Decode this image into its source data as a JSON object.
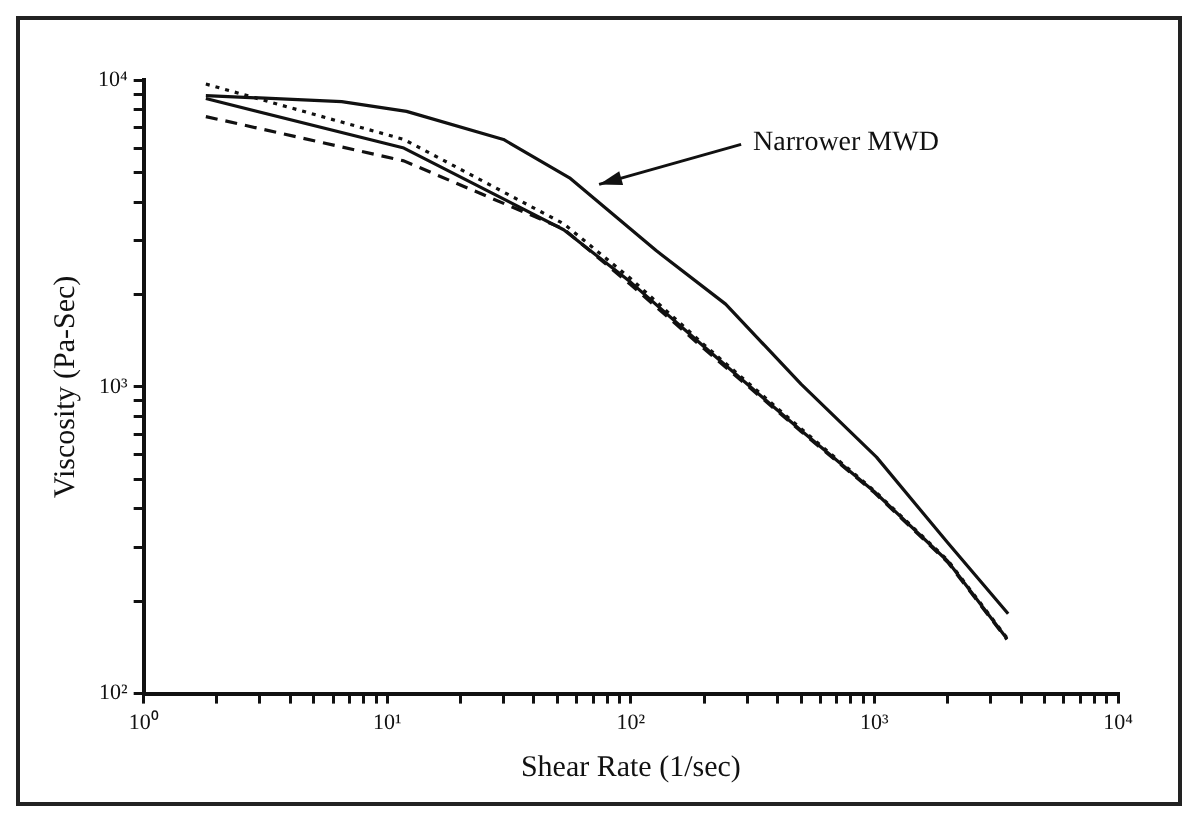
{
  "chart_data": {
    "type": "line",
    "xlabel": "Shear Rate (1/sec)",
    "ylabel": "Viscosity (Pa-Sec)",
    "log": "xy",
    "grid": false,
    "legend": false,
    "marker": "none",
    "xlim": [
      1,
      10000
    ],
    "ylim": [
      100,
      10000
    ],
    "xticks": [
      {
        "value": 1,
        "label": "10⁰"
      },
      {
        "value": 2,
        "label": null
      },
      {
        "value": 3,
        "label": null
      },
      {
        "value": 4,
        "label": null
      },
      {
        "value": 5,
        "label": null
      },
      {
        "value": 6,
        "label": null
      },
      {
        "value": 7,
        "label": null
      },
      {
        "value": 8,
        "label": null
      },
      {
        "value": 9,
        "label": null
      },
      {
        "value": 10,
        "label": "10¹"
      },
      {
        "value": 20,
        "label": null
      },
      {
        "value": 30,
        "label": null
      },
      {
        "value": 40,
        "label": null
      },
      {
        "value": 50,
        "label": null
      },
      {
        "value": 60,
        "label": null
      },
      {
        "value": 70,
        "label": null
      },
      {
        "value": 80,
        "label": null
      },
      {
        "value": 90,
        "label": null
      },
      {
        "value": 100,
        "label": "10²"
      },
      {
        "value": 200,
        "label": null
      },
      {
        "value": 300,
        "label": null
      },
      {
        "value": 400,
        "label": null
      },
      {
        "value": 500,
        "label": null
      },
      {
        "value": 600,
        "label": null
      },
      {
        "value": 700,
        "label": null
      },
      {
        "value": 800,
        "label": null
      },
      {
        "value": 900,
        "label": null
      },
      {
        "value": 1000,
        "label": "10³"
      },
      {
        "value": 2000,
        "label": null
      },
      {
        "value": 3000,
        "label": null
      },
      {
        "value": 4000,
        "label": null
      },
      {
        "value": 5000,
        "label": null
      },
      {
        "value": 6000,
        "label": null
      },
      {
        "value": 7000,
        "label": null
      },
      {
        "value": 8000,
        "label": null
      },
      {
        "value": 9000,
        "label": null
      },
      {
        "value": 10000,
        "label": "10⁴"
      }
    ],
    "yticks": [
      {
        "value": 100,
        "label": "10²"
      },
      {
        "value": 200,
        "label": null
      },
      {
        "value": 300,
        "label": null
      },
      {
        "value": 400,
        "label": null
      },
      {
        "value": 500,
        "label": null
      },
      {
        "value": 600,
        "label": null
      },
      {
        "value": 700,
        "label": null
      },
      {
        "value": 800,
        "label": null
      },
      {
        "value": 900,
        "label": null
      },
      {
        "value": 1000,
        "label": "10³"
      },
      {
        "value": 2000,
        "label": null
      },
      {
        "value": 3000,
        "label": null
      },
      {
        "value": 4000,
        "label": null
      },
      {
        "value": 5000,
        "label": null
      },
      {
        "value": 6000,
        "label": null
      },
      {
        "value": 7000,
        "label": null
      },
      {
        "value": 8000,
        "label": null
      },
      {
        "value": 9000,
        "label": null
      },
      {
        "value": 10000,
        "label": "10⁴"
      }
    ],
    "annotations": [
      {
        "text": "Narrower MWD",
        "x": 70,
        "y": 4500
      }
    ],
    "series": [
      {
        "color": "#111111",
        "line_style": "solid",
        "x": [
          1.8,
          6.5,
          12,
          30,
          56,
          127,
          245,
          500,
          1020,
          2000,
          3540
        ],
        "values": [
          8900,
          8500,
          7900,
          6400,
          4800,
          2780,
          1860,
          1020,
          590,
          310,
          182
        ]
      },
      {
        "color": "#111111",
        "line_style": "solid",
        "x": [
          1.8,
          11.7,
          53,
          100,
          200,
          500,
          1000,
          2000,
          3500
        ],
        "values": [
          8700,
          6000,
          3250,
          2190,
          1350,
          720,
          455,
          270,
          151
        ]
      },
      {
        "color": "#111111",
        "line_style": "dotted",
        "x": [
          1.8,
          11.7,
          53,
          100,
          200,
          500,
          1000,
          2000,
          3500
        ],
        "values": [
          9700,
          6400,
          3400,
          2250,
          1370,
          730,
          458,
          272,
          152
        ]
      },
      {
        "color": "#111111",
        "line_style": "dashed",
        "x": [
          1.8,
          11.7,
          53,
          100,
          200,
          500,
          1000,
          2000,
          3500
        ],
        "values": [
          7600,
          5450,
          3270,
          2150,
          1330,
          715,
          452,
          268,
          150
        ]
      }
    ]
  }
}
